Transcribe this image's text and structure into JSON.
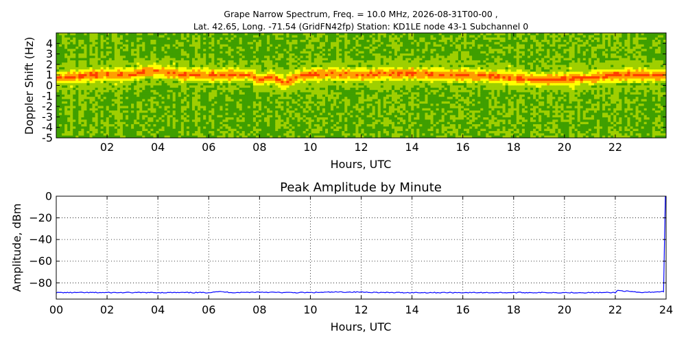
{
  "figure": {
    "title_line1": "Grape Narrow Spectrum, Freq. = 10.0 MHz, 2026-08-31T00-00 ,",
    "title_line2": "Lat.  42.65, Long. -71.54 (GridFN42fp) Station: KD1LE node 43-1 Subchannel 0"
  },
  "chart_data": [
    {
      "type": "heatmap",
      "xlabel": "Hours, UTC",
      "ylabel": "Doppler Shift (Hz)",
      "xlim": [
        0,
        24
      ],
      "ylim": [
        -5,
        5
      ],
      "x_ticks": [
        2,
        4,
        6,
        8,
        10,
        12,
        14,
        16,
        18,
        20,
        22
      ],
      "x_tick_labels": [
        "02",
        "04",
        "06",
        "08",
        "10",
        "12",
        "14",
        "16",
        "18",
        "20",
        "22"
      ],
      "y_ticks": [
        -5,
        -4,
        -3,
        -2,
        -1,
        0,
        1,
        2,
        3,
        4
      ],
      "y_tick_labels": [
        "-5",
        "-4",
        "-3",
        "-2",
        "-1",
        "0",
        "1",
        "2",
        "3",
        "4"
      ],
      "colormap": [
        "#0f6f00",
        "#3f9f00",
        "#9fcf00",
        "#ffff00",
        "#ff9f00",
        "#ff3f00"
      ],
      "doppler_trace": {
        "hours": [
          0,
          1,
          2,
          3,
          3.5,
          4,
          5,
          6,
          7,
          7.6,
          8,
          8.5,
          9,
          9.5,
          10,
          11,
          12,
          13,
          14,
          15,
          16,
          17,
          18,
          19,
          20,
          21,
          22,
          23,
          24
        ],
        "hz": [
          0.7,
          0.9,
          1.1,
          1.0,
          1.3,
          1.4,
          1.0,
          1.0,
          1.0,
          1.0,
          0.5,
          0.8,
          0.2,
          0.9,
          1.0,
          1.1,
          1.0,
          1.1,
          1.1,
          1.0,
          1.0,
          0.9,
          0.7,
          0.5,
          0.6,
          0.7,
          1.0,
          1.0,
          0.9
        ]
      }
    },
    {
      "type": "line",
      "title": "Peak Amplitude by Minute",
      "xlabel": "Hours, UTC",
      "ylabel": "Amplitude, dBm",
      "xlim": [
        0,
        24
      ],
      "ylim": [
        -95,
        0
      ],
      "grid": true,
      "x_ticks": [
        0,
        2,
        4,
        6,
        8,
        10,
        12,
        14,
        16,
        18,
        20,
        22,
        24
      ],
      "x_tick_labels": [
        "00",
        "02",
        "04",
        "06",
        "08",
        "10",
        "12",
        "14",
        "16",
        "18",
        "20",
        "22",
        "24"
      ],
      "y_ticks": [
        0,
        -20,
        -40,
        -60,
        -80
      ],
      "y_tick_labels": [
        "0",
        "−20",
        "−40",
        "−60",
        "−80"
      ],
      "color": "#0000ff",
      "x": [
        0,
        1,
        2,
        3,
        4,
        5,
        6,
        6.3,
        7,
        8,
        9,
        10,
        11,
        12,
        13,
        14,
        15,
        16,
        17,
        18,
        19,
        20,
        21,
        22,
        22.1,
        23,
        23.9,
        23.97,
        24
      ],
      "y": [
        -89,
        -89,
        -89,
        -89,
        -89,
        -89,
        -89,
        -88,
        -89,
        -88.5,
        -89,
        -89,
        -88.5,
        -88.5,
        -89,
        -89,
        -89,
        -89,
        -89,
        -89,
        -89,
        -89,
        -89,
        -89,
        -87,
        -89,
        -88,
        0,
        0
      ]
    }
  ]
}
